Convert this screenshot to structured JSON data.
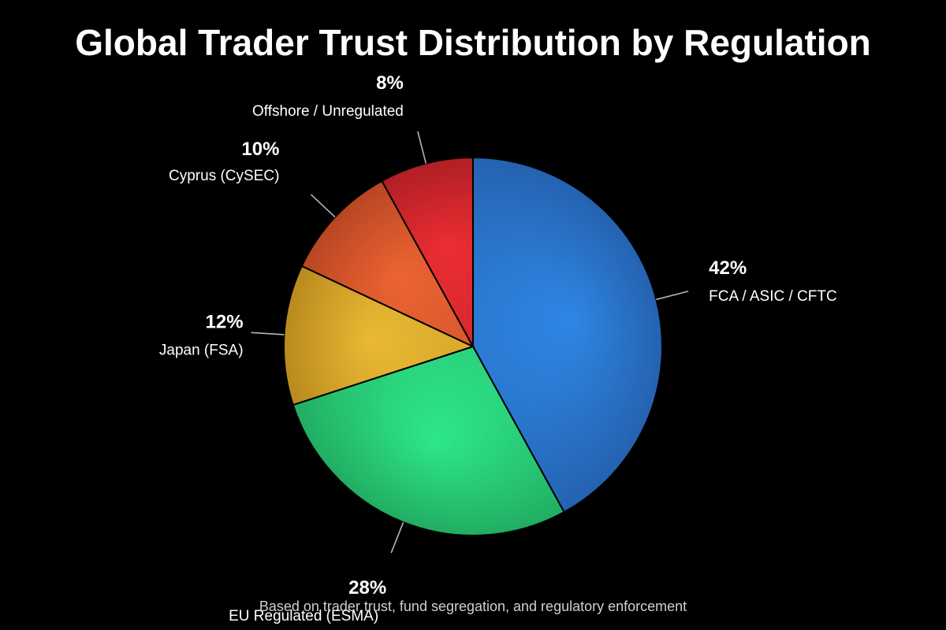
{
  "chart_data": {
    "type": "pie",
    "title": "Global Trader Trust Distribution by Regulation",
    "subtitle": "Based on trader trust, fund segregation, and regulatory enforcement",
    "slices": [
      {
        "label": "FCA / ASIC / CFTC",
        "value": 42,
        "value_label": "42%",
        "color": "#2f86e4",
        "edge_color": "#2462b0"
      },
      {
        "label": "EU Regulated (ESMA)",
        "value": 28,
        "value_label": "28%",
        "color": "#2ee68a",
        "edge_color": "#21ad63"
      },
      {
        "label": "Japan (FSA)",
        "value": 12,
        "value_label": "12%",
        "color": "#eab933",
        "edge_color": "#b88a1e"
      },
      {
        "label": "Cyprus (CySEC)",
        "value": 10,
        "value_label": "10%",
        "color": "#ec6332",
        "edge_color": "#b84622"
      },
      {
        "label": "Offshore / Unregulated",
        "value": 8,
        "value_label": "8%",
        "color": "#ea2d33",
        "edge_color": "#b01f24"
      }
    ],
    "start_angle_deg": 0,
    "direction": "clockwise",
    "legend": "none"
  }
}
